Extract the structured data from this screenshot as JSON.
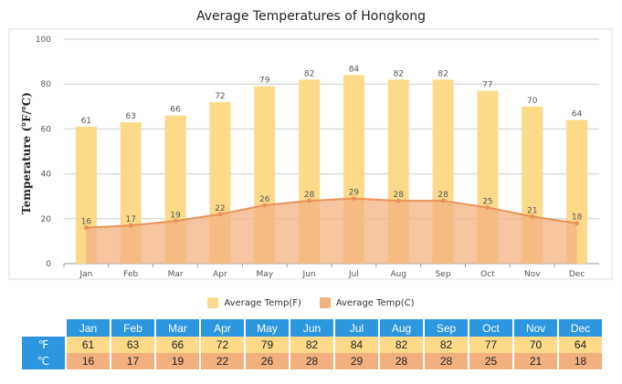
{
  "chart_data": {
    "type": "bar",
    "title": "Average Temperatures of Hongkong",
    "ylabel": "Temperature (℉/℃)",
    "xlabel": "",
    "ylim": [
      0,
      100
    ],
    "yticks": [
      0,
      20,
      40,
      60,
      80,
      100
    ],
    "categories": [
      "Jan",
      "Feb",
      "Mar",
      "Apr",
      "May",
      "Jun",
      "Jul",
      "Aug",
      "Sep",
      "Oct",
      "Nov",
      "Dec"
    ],
    "series": [
      {
        "name": "Average Temp(F)",
        "type": "bar",
        "color": "#fdd98a",
        "values": [
          61,
          63,
          66,
          72,
          79,
          82,
          84,
          82,
          82,
          77,
          70,
          64
        ]
      },
      {
        "name": "Average Temp(C)",
        "type": "area",
        "color": "#f3b07f",
        "values": [
          16,
          17,
          19,
          22,
          26,
          28,
          29,
          28,
          28,
          25,
          21,
          18
        ]
      }
    ],
    "grid": true,
    "legend_position": "bottom"
  },
  "table": {
    "row_f_label": "℉",
    "row_c_label": "℃",
    "header_color": "#2c97de"
  }
}
